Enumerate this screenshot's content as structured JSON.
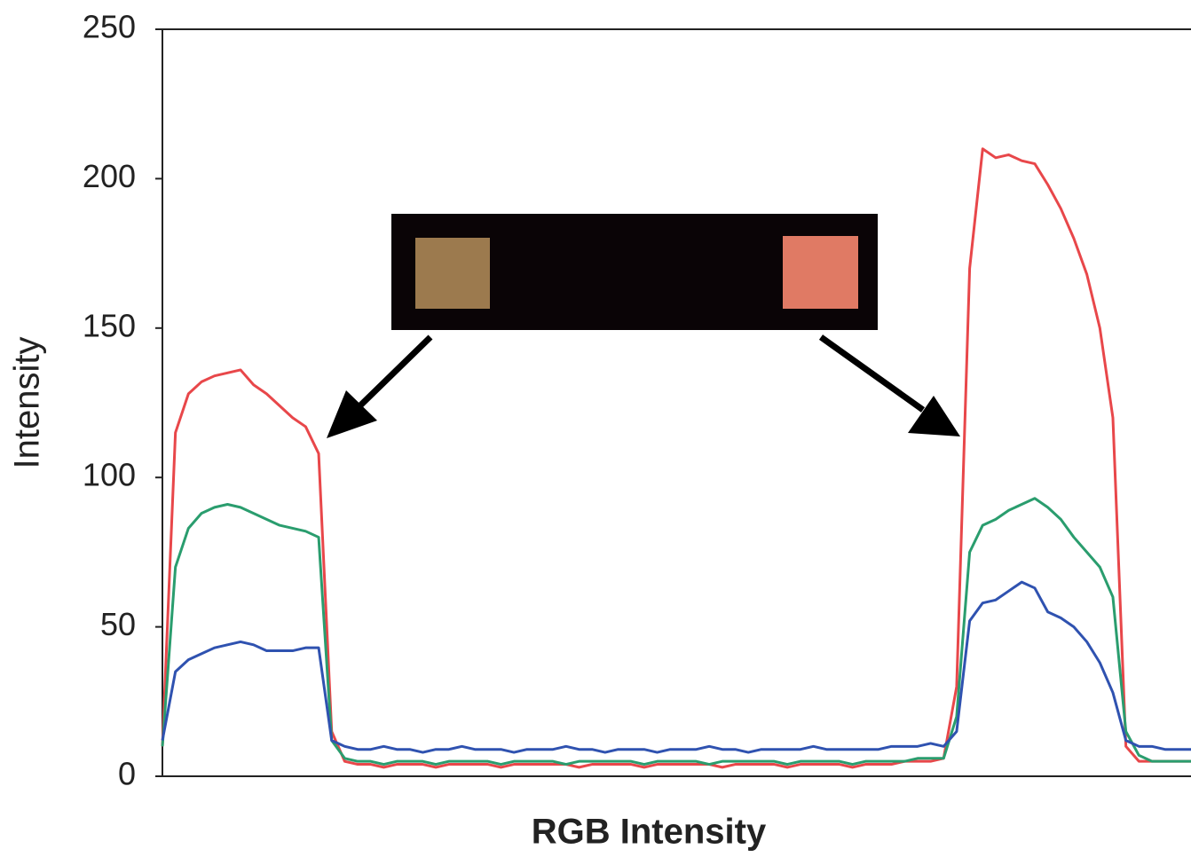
{
  "chart_data": {
    "type": "line",
    "y_label": "Intensity",
    "x_label": "RGB Intensity",
    "categories": [
      null,
      null,
      null,
      null,
      null,
      null,
      null,
      null,
      null,
      null,
      null,
      null,
      null,
      null,
      null,
      null,
      null,
      null,
      null,
      null,
      null,
      null,
      null,
      null,
      null,
      null,
      null,
      null,
      null,
      null,
      null,
      null,
      null,
      null,
      null,
      null,
      null,
      null,
      null,
      null,
      null,
      null,
      null,
      null,
      null,
      null,
      null,
      null,
      null,
      null,
      null,
      null,
      null,
      null,
      null,
      null,
      null,
      null,
      null,
      null,
      null,
      null,
      null,
      null,
      null,
      null,
      null,
      null,
      null,
      null,
      null,
      null,
      null,
      null,
      null,
      null,
      null,
      null,
      null,
      null
    ],
    "series": [
      {
        "color": "#e8474a",
        "values": [
          10,
          115,
          128,
          132,
          134,
          135,
          136,
          131,
          128,
          124,
          120,
          117,
          108,
          15,
          5,
          4,
          4,
          3,
          4,
          4,
          4,
          3,
          4,
          4,
          4,
          4,
          3,
          4,
          4,
          4,
          4,
          4,
          3,
          4,
          4,
          4,
          4,
          3,
          4,
          4,
          4,
          4,
          4,
          3,
          4,
          4,
          4,
          4,
          3,
          4,
          4,
          4,
          4,
          3,
          4,
          4,
          4,
          5,
          5,
          5,
          6,
          30,
          170,
          210,
          207,
          208,
          206,
          205,
          198,
          190,
          180,
          168,
          150,
          120,
          10,
          5,
          5,
          5,
          5,
          5
        ]
      },
      {
        "color": "#2a9d6e",
        "values": [
          10,
          70,
          83,
          88,
          90,
          91,
          90,
          88,
          86,
          84,
          83,
          82,
          80,
          12,
          6,
          5,
          5,
          4,
          5,
          5,
          5,
          4,
          5,
          5,
          5,
          5,
          4,
          5,
          5,
          5,
          5,
          4,
          5,
          5,
          5,
          5,
          5,
          4,
          5,
          5,
          5,
          5,
          4,
          5,
          5,
          5,
          5,
          5,
          4,
          5,
          5,
          5,
          5,
          4,
          5,
          5,
          5,
          5,
          6,
          6,
          6,
          20,
          75,
          84,
          86,
          89,
          91,
          93,
          90,
          86,
          80,
          75,
          70,
          60,
          15,
          7,
          5,
          5,
          5,
          5
        ]
      },
      {
        "color": "#2f52b0",
        "values": [
          12,
          35,
          39,
          41,
          43,
          44,
          45,
          44,
          42,
          42,
          42,
          43,
          43,
          12,
          10,
          9,
          9,
          10,
          9,
          9,
          8,
          9,
          9,
          10,
          9,
          9,
          9,
          8,
          9,
          9,
          9,
          10,
          9,
          9,
          8,
          9,
          9,
          9,
          8,
          9,
          9,
          9,
          10,
          9,
          9,
          8,
          9,
          9,
          9,
          9,
          10,
          9,
          9,
          9,
          9,
          9,
          10,
          10,
          10,
          11,
          10,
          15,
          52,
          58,
          59,
          62,
          65,
          63,
          55,
          53,
          50,
          45,
          38,
          28,
          12,
          10,
          10,
          9,
          9,
          9
        ]
      }
    ],
    "ylim": [
      0,
      250
    ],
    "yticks": [
      0,
      50,
      100,
      150,
      200,
      250
    ]
  }
}
